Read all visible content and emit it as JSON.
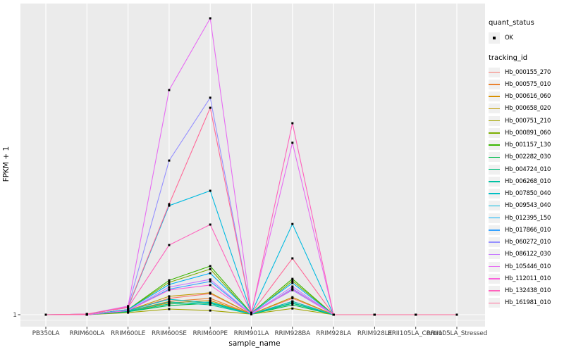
{
  "figure": {
    "y_axis_title": "FPKM + 1",
    "x_axis_title": "sample_name",
    "y_tick_label": "1"
  },
  "legend": {
    "quant_status_title": "quant_status",
    "ok_label": "OK",
    "tracking_id_title": "tracking_id"
  },
  "colors": {
    "panel_background": "#ebebeb",
    "gridline": "#ffffff",
    "tick": "#333333",
    "tick_label": "#4d4d4d",
    "marker": "#000000",
    "legend_key_background": "#f0f0f0"
  },
  "chart_data": {
    "type": "line",
    "title": "",
    "xlabel": "sample_name",
    "ylabel": "FPKM + 1",
    "categories": [
      "PB350LA",
      "RRIM600LA",
      "RRIM600LE",
      "RRIM600SE",
      "RRIM600PE",
      "RRIM901LA",
      "RRIM928BA",
      "RRIM928LA",
      "RRIM928LE",
      "RRII105LA_Control",
      "RRII105LA_Stressed"
    ],
    "y_axis": {
      "tick_labels": [
        "1"
      ],
      "note": "only the value 1 is labeled; series values below are relative panel heights 0-1 read from pixels"
    },
    "marker": {
      "shape": "filled-square-point",
      "color": "#000000",
      "legend_status": "OK"
    },
    "legend_position": "right",
    "grid": "vertical-major-white-on-grey",
    "series": [
      {
        "name": "Hb_000155_270",
        "color": "#F8766D",
        "values": [
          0,
          0,
          0.014,
          0.055,
          0.071,
          0.002,
          0.055,
          0,
          0,
          0,
          0
        ]
      },
      {
        "name": "Hb_000575_010",
        "color": "#EA8331",
        "values": [
          0,
          0,
          0.012,
          0.045,
          0.055,
          0.002,
          0.045,
          0,
          0,
          0,
          0
        ]
      },
      {
        "name": "Hb_000616_060",
        "color": "#D89000",
        "values": [
          0,
          0,
          0.012,
          0.04,
          0.048,
          0.002,
          0.04,
          0,
          0,
          0,
          0
        ]
      },
      {
        "name": "Hb_000658_020",
        "color": "#C09B00",
        "values": [
          0,
          0,
          0.014,
          0.062,
          0.074,
          0.002,
          0.059,
          0,
          0,
          0,
          0
        ]
      },
      {
        "name": "Hb_000751_210",
        "color": "#A3A500",
        "values": [
          0,
          0,
          0.007,
          0.019,
          0.014,
          0.002,
          0.021,
          0,
          0,
          0,
          0
        ]
      },
      {
        "name": "Hb_000891_060",
        "color": "#7CAE00",
        "values": [
          0,
          0,
          0.017,
          0.109,
          0.154,
          0.002,
          0.114,
          0,
          0,
          0,
          0
        ]
      },
      {
        "name": "Hb_001157_130",
        "color": "#39B600",
        "values": [
          0,
          0,
          0.017,
          0.116,
          0.164,
          0.005,
          0.121,
          0,
          0,
          0,
          0
        ]
      },
      {
        "name": "Hb_002282_030",
        "color": "#00BB4E",
        "values": [
          0,
          0,
          0.01,
          0.031,
          0.038,
          0.002,
          0.033,
          0,
          0,
          0,
          0
        ]
      },
      {
        "name": "Hb_004724_010",
        "color": "#00BF7D",
        "values": [
          0,
          0,
          0.01,
          0.036,
          0.043,
          0.002,
          0.038,
          0,
          0,
          0,
          0
        ]
      },
      {
        "name": "Hb_006268_010",
        "color": "#00C1A3",
        "values": [
          0,
          0,
          0.012,
          0.043,
          0.033,
          0.002,
          0.04,
          0,
          0,
          0,
          0
        ]
      },
      {
        "name": "Hb_007850_040",
        "color": "#00BFC4",
        "values": [
          0,
          0,
          0.014,
          0.052,
          0.04,
          0.002,
          0.045,
          0,
          0,
          0,
          0
        ]
      },
      {
        "name": "Hb_009543_040",
        "color": "#00BAE0",
        "values": [
          0,
          0.002,
          0.024,
          0.368,
          0.418,
          0.005,
          0.306,
          0,
          0,
          0,
          0
        ]
      },
      {
        "name": "Hb_012395_150",
        "color": "#00B0F6",
        "values": [
          0,
          0,
          0.017,
          0.102,
          0.14,
          0.005,
          0.107,
          0,
          0,
          0,
          0
        ]
      },
      {
        "name": "Hb_017866_010",
        "color": "#35A2FF",
        "values": [
          0,
          0,
          0.014,
          0.086,
          0.112,
          0.002,
          0.088,
          0,
          0,
          0,
          0
        ]
      },
      {
        "name": "Hb_060272_010",
        "color": "#9590FF",
        "values": [
          0,
          0.002,
          0.026,
          0.52,
          0.732,
          0.005,
          0.083,
          0,
          0,
          0,
          0
        ]
      },
      {
        "name": "Hb_086122_030",
        "color": "#C77CFF",
        "values": [
          0,
          0,
          0.014,
          0.093,
          0.119,
          0.002,
          0.095,
          0,
          0,
          0,
          0
        ]
      },
      {
        "name": "Hb_105446_010",
        "color": "#E76BF3",
        "values": [
          0,
          0.002,
          0.029,
          0.758,
          1.0,
          0.007,
          0.58,
          0,
          0,
          0,
          0
        ]
      },
      {
        "name": "Hb_112011_010",
        "color": "#FA62DB",
        "values": [
          0,
          0,
          0.014,
          0.083,
          0.1,
          0.002,
          0.086,
          0,
          0,
          0,
          0
        ]
      },
      {
        "name": "Hb_132438_010",
        "color": "#FF62BC",
        "values": [
          0,
          0.002,
          0.024,
          0.235,
          0.304,
          0.005,
          0.646,
          0,
          0,
          0,
          0
        ]
      },
      {
        "name": "Hb_161981_010",
        "color": "#FF6A98",
        "values": [
          0,
          0.002,
          0.026,
          0.373,
          0.698,
          0.005,
          0.19,
          0,
          0,
          0,
          0
        ]
      }
    ]
  }
}
